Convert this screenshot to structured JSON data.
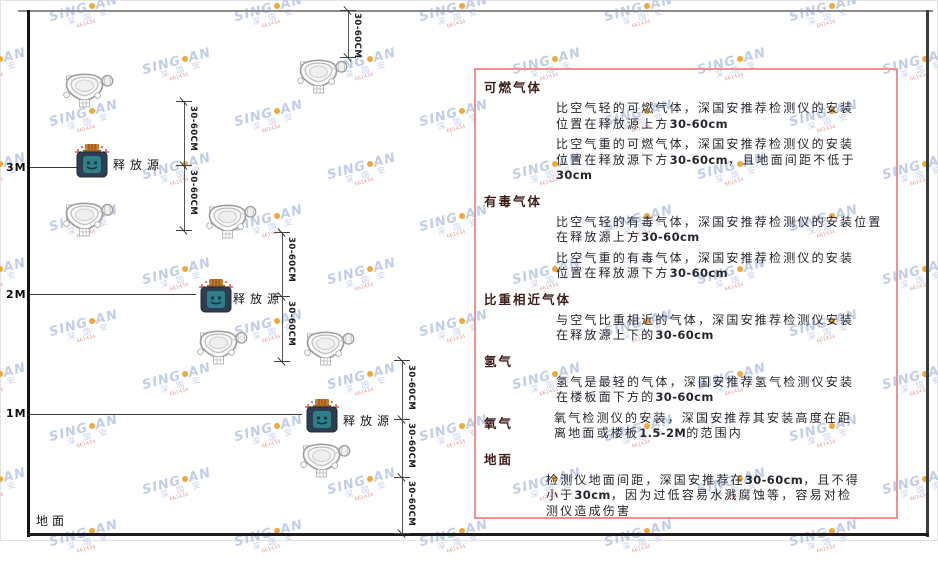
{
  "diagram": {
    "dim_label": "30-60CM",
    "wall_labels": [
      "3M",
      "2M",
      "1M"
    ],
    "ground_label": "地面",
    "release_source_label": "释放源"
  },
  "watermark": {
    "brand_left": "SING",
    "brand_right": "AN",
    "name": "深 国 安",
    "code": "661434"
  },
  "panel": {
    "sections": [
      {
        "heading": "可燃气体",
        "paragraphs": [
          [
            "比空气轻的可燃气体，深国安推荐检测仪的安装",
            "位置在释放源上方30-60cm"
          ],
          [
            "比空气重的可燃气体，深国安推荐检测仪的安装",
            "位置在释放源下方30-60cm，且地面间距不低于",
            "30cm"
          ]
        ]
      },
      {
        "heading": "有毒气体",
        "paragraphs": [
          [
            "比空气轻的有毒气体，深国安推荐检测仪的安装位置",
            "在释放源上方30-60cm"
          ],
          [
            "比空气重的有毒气体，深国安推荐检测仪的安装",
            "位置在释放源下方30-60cm"
          ]
        ]
      },
      {
        "heading": "比重相近气体",
        "paragraphs": [
          [
            "与空气比重相近的气体，深国安推荐检测仪安装",
            "在释放源上下的30-60cm"
          ]
        ]
      },
      {
        "heading": "氢气",
        "paragraphs": [
          [
            "氢气是最轻的气体，深国安推荐氢气检测仪安装",
            "在楼板面下方的30-60cm"
          ]
        ]
      },
      {
        "heading": "氧气",
        "inline": true,
        "paragraphs": [
          [
            "氧气检测仪的安装，深国安推荐其安装高度在距",
            "离地面或楼板1.5-2M的范围内"
          ]
        ]
      },
      {
        "heading": "地面",
        "paragraphs": [
          [
            "检测仪地面间距，深国安推荐在30-60cm，且不得",
            "小于30cm，因为过低容易水溅腐蚀等，容易对检",
            "测仪造成伤害"
          ]
        ]
      }
    ]
  }
}
